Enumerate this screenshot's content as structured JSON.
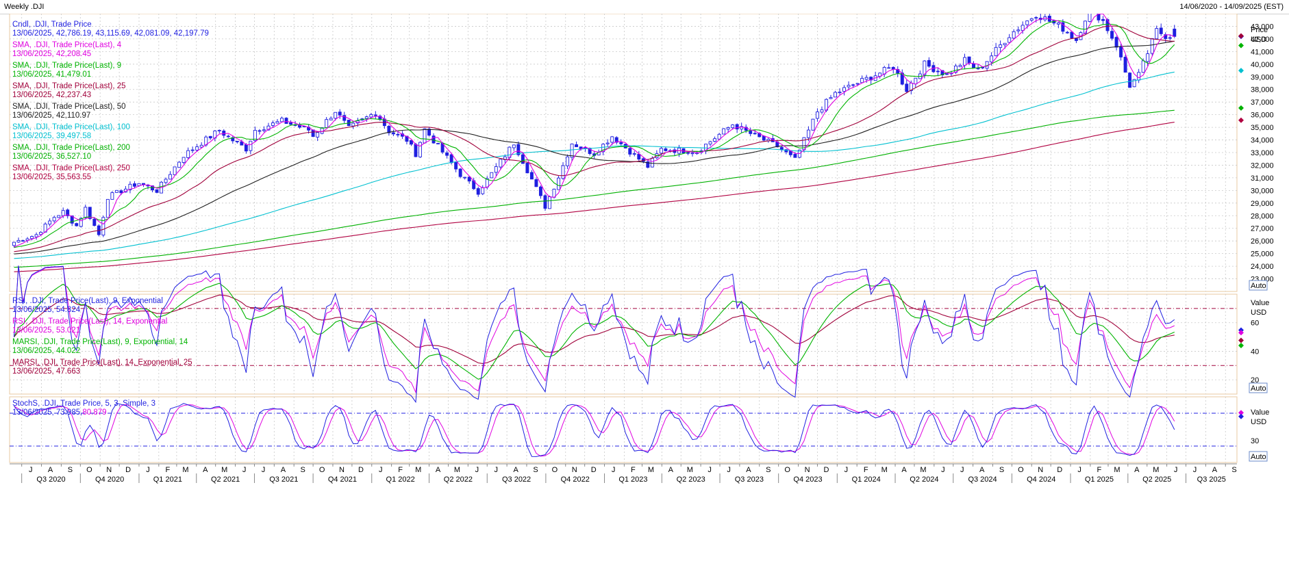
{
  "window": {
    "title": "Weekly .DJI",
    "date_range": "14/06/2020 - 14/09/2025 (EST)"
  },
  "colors": {
    "candle": "#1f1fe0",
    "sma4": "#e000e0",
    "sma9": "#00b400",
    "sma25": "#a0003a",
    "sma50": "#202020",
    "sma100": "#00c0d0",
    "sma200": "#00b000",
    "sma250": "#b00040",
    "rsi9": "#1f1fe0",
    "rsi14": "#e000e0",
    "marsi9": "#00b400",
    "marsi14": "#a0003a",
    "stochK": "#1f1fe0",
    "stochD": "#e000e0",
    "grid": "#c8c8c8",
    "panelBorder": "#e8c8a0"
  },
  "auto_label": "Auto",
  "chart_data": [
    {
      "type": "candlestick",
      "panel": "price",
      "axis_title": [
        "Price",
        "USD"
      ],
      "ylim": [
        22000,
        44000
      ],
      "yticks": [
        23000,
        24000,
        25000,
        26000,
        27000,
        28000,
        29000,
        30000,
        31000,
        32000,
        33000,
        34000,
        35000,
        36000,
        37000,
        38000,
        39000,
        40000,
        41000,
        42000,
        43000
      ],
      "ytick_labels": [
        "23,000",
        "24,000",
        "25,000",
        "26,000",
        "27,000",
        "28,000",
        "29,000",
        "30,000",
        "31,000",
        "32,000",
        "33,000",
        "34,000",
        "35,000",
        "36,000",
        "37,000",
        "38,000",
        "39,000",
        "40,000",
        "41,000",
        "42,000",
        "43,000"
      ],
      "legend": [
        {
          "name": "Cndl, .DJI, Trade Price",
          "value": "13/06/2025, 42,786.19, 43,115.69, 42,081.09, 42,197.79",
          "color": "candle"
        },
        {
          "name": "SMA, .DJI, Trade Price(Last), 4",
          "value": "13/06/2025, 42,208.45",
          "color": "sma4"
        },
        {
          "name": "SMA, .DJI, Trade Price(Last), 9",
          "value": "13/06/2025, 41,479.01",
          "color": "sma9"
        },
        {
          "name": "SMA, .DJI, Trade Price(Last), 25",
          "value": "13/06/2025, 42,237.43",
          "color": "sma25"
        },
        {
          "name": "SMA, .DJI, Trade Price(Last), 50",
          "value": "13/06/2025, 42,110.97",
          "color": "sma50"
        },
        {
          "name": "SMA, .DJI, Trade Price(Last), 100",
          "value": "13/06/2025, 39,497.58",
          "color": "sma100"
        },
        {
          "name": "SMA, .DJI, Trade Price(Last), 200",
          "value": "13/06/2025, 36,527.10",
          "color": "sma200"
        },
        {
          "name": "SMA, .DJI, Trade Price(Last), 250",
          "value": "13/06/2025, 35,563.55",
          "color": "sma250"
        }
      ],
      "close_anchors": [
        [
          "2020-06-19",
          25900
        ],
        [
          "2020-07-24",
          26500
        ],
        [
          "2020-08-21",
          27900
        ],
        [
          "2020-09-04",
          28300
        ],
        [
          "2020-09-25",
          27200
        ],
        [
          "2020-10-09",
          28600
        ],
        [
          "2020-10-30",
          26500
        ],
        [
          "2020-11-13",
          29480
        ],
        [
          "2020-12-31",
          30600
        ],
        [
          "2021-01-29",
          29980
        ],
        [
          "2021-03-12",
          32780
        ],
        [
          "2021-05-07",
          34780
        ],
        [
          "2021-05-21",
          34200
        ],
        [
          "2021-06-18",
          33290
        ],
        [
          "2021-07-02",
          34790
        ],
        [
          "2021-08-13",
          35500
        ],
        [
          "2021-09-24",
          34800
        ],
        [
          "2021-10-01",
          34300
        ],
        [
          "2021-11-05",
          36300
        ],
        [
          "2021-11-26",
          34900
        ],
        [
          "2022-01-07",
          36200
        ],
        [
          "2022-01-28",
          34700
        ],
        [
          "2022-02-25",
          34000
        ],
        [
          "2022-03-11",
          32900
        ],
        [
          "2022-03-25",
          34850
        ],
        [
          "2022-05-20",
          31260
        ],
        [
          "2022-06-17",
          29890
        ],
        [
          "2022-07-08",
          31330
        ],
        [
          "2022-08-12",
          33760
        ],
        [
          "2022-09-30",
          28725
        ],
        [
          "2022-10-21",
          31080
        ],
        [
          "2022-11-11",
          33750
        ],
        [
          "2022-12-16",
          32920
        ],
        [
          "2023-01-13",
          34300
        ],
        [
          "2023-03-10",
          31900
        ],
        [
          "2023-03-31",
          33270
        ],
        [
          "2023-05-26",
          33090
        ],
        [
          "2023-07-21",
          35230
        ],
        [
          "2023-08-18",
          34500
        ],
        [
          "2023-09-29",
          33500
        ],
        [
          "2023-10-27",
          32420
        ],
        [
          "2023-12-01",
          36250
        ],
        [
          "2023-12-29",
          37690
        ],
        [
          "2024-02-09",
          38670
        ],
        [
          "2024-03-29",
          39800
        ],
        [
          "2024-04-19",
          37990
        ],
        [
          "2024-05-17",
          40000
        ],
        [
          "2024-06-21",
          39150
        ],
        [
          "2024-07-19",
          40300
        ],
        [
          "2024-08-09",
          39500
        ],
        [
          "2024-09-27",
          42300
        ],
        [
          "2024-11-08",
          43990
        ],
        [
          "2024-12-20",
          42840
        ],
        [
          "2025-01-10",
          41930
        ],
        [
          "2025-01-31",
          44500
        ],
        [
          "2025-02-21",
          43430
        ],
        [
          "2025-03-14",
          41500
        ],
        [
          "2025-04-04",
          38300
        ],
        [
          "2025-04-18",
          39140
        ],
        [
          "2025-05-16",
          42650
        ],
        [
          "2025-05-30",
          42270
        ],
        [
          "2025-06-13",
          42197.79
        ]
      ]
    },
    {
      "type": "line",
      "panel": "rsi",
      "axis_title": [
        "Value",
        "USD"
      ],
      "ylim": [
        10,
        80
      ],
      "yticks": [
        20,
        40,
        60
      ],
      "reference_lines": [
        70,
        30
      ],
      "legend": [
        {
          "name": "RSI, .DJI, Trade Price(Last), 9, Exponential",
          "value": "13/06/2025, 54.824",
          "color": "rsi9"
        },
        {
          "name": "RSI, .DJI, Trade Price(Last), 14, Exponential",
          "value": "13/06/2025, 53.021",
          "color": "rsi14"
        },
        {
          "name": "MARSI, .DJI, Trade Price(Last), 9, Exponential, 14",
          "value": "13/06/2025, 44.022",
          "color": "marsi9"
        },
        {
          "name": "MARSI, .DJI, Trade Price(Last), 14, Exponential, 25",
          "value": "13/06/2025, 47.663",
          "color": "marsi14"
        }
      ]
    },
    {
      "type": "line",
      "panel": "stoch",
      "axis_title": [
        "Value",
        "USD"
      ],
      "ylim": [
        -10,
        110
      ],
      "yticks": [
        30
      ],
      "reference_lines": [
        80,
        20
      ],
      "legend": [
        {
          "name": "StochS, .DJI, Trade Price, 5, 3, Simple, 3",
          "value": "13/06/2025, 73.985, ",
          "value2": "80.879",
          "color": "stochK",
          "color2": "stochD"
        }
      ]
    }
  ],
  "x_axis": {
    "start": "2020-06-12",
    "end": "2025-09-19",
    "month_labels": [
      "J",
      "A",
      "S",
      "O",
      "N",
      "D",
      "J",
      "F",
      "M",
      "A",
      "M",
      "J",
      "J",
      "A",
      "S",
      "O",
      "N",
      "D",
      "J",
      "F",
      "M",
      "A",
      "M",
      "J",
      "J",
      "A",
      "S",
      "O",
      "N",
      "D",
      "J",
      "F",
      "M",
      "A",
      "M",
      "J",
      "J",
      "A",
      "S",
      "O",
      "N",
      "D",
      "J",
      "F",
      "M",
      "A",
      "M",
      "J",
      "J",
      "A",
      "S",
      "O",
      "N",
      "D",
      "J",
      "F",
      "M",
      "A",
      "M",
      "J",
      "J",
      "A",
      "S"
    ],
    "quarters": [
      "Q3 2020",
      "Q4 2020",
      "Q1 2021",
      "Q2 2021",
      "Q3 2021",
      "Q4 2021",
      "Q1 2022",
      "Q2 2022",
      "Q3 2022",
      "Q4 2022",
      "Q1 2023",
      "Q2 2023",
      "Q3 2023",
      "Q4 2023",
      "Q1 2024",
      "Q2 2024",
      "Q3 2024",
      "Q4 2024",
      "Q1 2025",
      "Q2 2025",
      "Q3 2025"
    ]
  }
}
